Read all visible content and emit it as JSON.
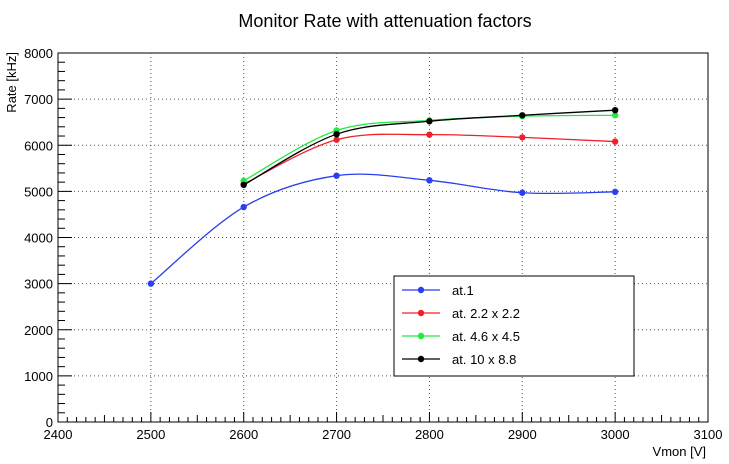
{
  "chart_data": {
    "type": "line",
    "title": "Monitor Rate with attenuation factors",
    "xlabel": "Vmon [V]",
    "ylabel": "Rate [kHz]",
    "xlim": [
      2400,
      3100
    ],
    "ylim": [
      0,
      8000
    ],
    "x_ticks": [
      2400,
      2500,
      2600,
      2700,
      2800,
      2900,
      3000,
      3100
    ],
    "y_ticks": [
      0,
      1000,
      2000,
      3000,
      4000,
      5000,
      6000,
      7000,
      8000
    ],
    "grid": true,
    "legend_position": "lower-right",
    "series": [
      {
        "name": "at.1",
        "color": "#2a3ff0",
        "x": [
          2500,
          2600,
          2700,
          2800,
          2900,
          3000
        ],
        "y": [
          3000,
          4660,
          5340,
          5240,
          4970,
          4990
        ]
      },
      {
        "name": "at. 2.2 x 2.2",
        "color": "#f0202a",
        "x": [
          2600,
          2700,
          2800,
          2900,
          3000
        ],
        "y": [
          5160,
          6120,
          6230,
          6170,
          6080
        ]
      },
      {
        "name": "at. 4.6 x 4.5",
        "color": "#22e840",
        "x": [
          2600,
          2700,
          2800,
          2900,
          3000
        ],
        "y": [
          5230,
          6320,
          6540,
          6630,
          6650
        ]
      },
      {
        "name": "at. 10 x 8.8",
        "color": "#000000",
        "x": [
          2600,
          2700,
          2800,
          2900,
          3000
        ],
        "y": [
          5140,
          6240,
          6520,
          6650,
          6760
        ]
      }
    ]
  }
}
